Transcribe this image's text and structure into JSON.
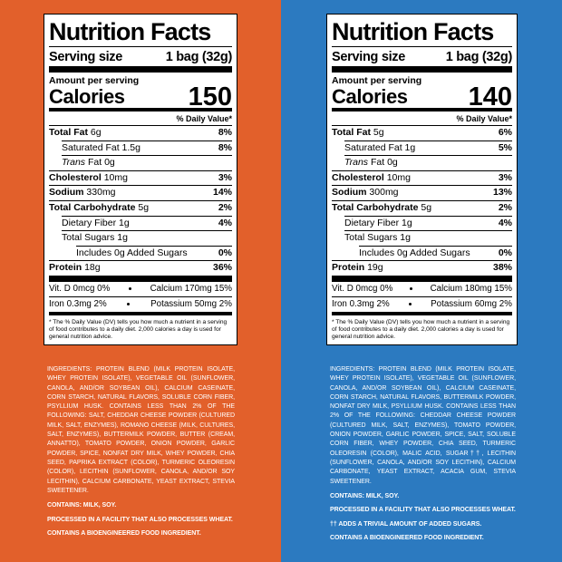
{
  "panels": [
    {
      "title": "Nutrition Facts",
      "serving_label": "Serving size",
      "serving_value": "1 bag (32g)",
      "amount_per_serving": "Amount per serving",
      "calories_label": "Calories",
      "calories": "150",
      "dv_header": "% Daily Value*",
      "rows": [
        {
          "label": "Total Fat",
          "amount": "6g",
          "dv": "8%"
        },
        {
          "label": "Saturated Fat",
          "amount": "1.5g",
          "dv": "8%"
        },
        {
          "label_prefix": "Trans",
          "label": "Fat",
          "amount": "0g"
        },
        {
          "label": "Cholesterol",
          "amount": "10mg",
          "dv": "3%"
        },
        {
          "label": "Sodium",
          "amount": "330mg",
          "dv": "14%"
        },
        {
          "label": "Total Carbohydrate",
          "amount": "5g",
          "dv": "2%"
        },
        {
          "label": "Dietary Fiber",
          "amount": "1g",
          "dv": "4%"
        },
        {
          "label": "Total Sugars",
          "amount": "1g"
        },
        {
          "label": "Includes 0g Added Sugars",
          "dv": "0%"
        },
        {
          "label": "Protein",
          "amount": "18g",
          "dv": "36%"
        }
      ],
      "vitamins": [
        [
          "Vit. D 0mcg 0%",
          "Calcium 170mg 15%"
        ],
        [
          "Iron 0.3mg 2%",
          "Potassium 50mg 2%"
        ]
      ],
      "footnote": "* The % Daily Value (DV) tells you how much a nutrient in a serving of food contributes to a daily diet. 2,000 calories a day is used for general nutrition advice.",
      "ingredients": "INGREDIENTS: PROTEIN BLEND (MILK PROTEIN ISOLATE, WHEY PROTEIN ISOLATE), VEGETABLE OIL (SUNFLOWER, CANOLA, AND/OR SOYBEAN OIL), CALCIUM CASEINATE, CORN STARCH, NATURAL FLAVORS, SOLUBLE CORN FIBER, PSYLLIUM HUSK. CONTAINS LESS THAN 2% OF THE FOLLOWING: SALT, CHEDDAR CHEESE POWDER (CULTURED MILK, SALT, ENZYMES), ROMANO CHEESE (MILK, CULTURES, SALT, ENZYMES), BUTTERMILK POWDER, BUTTER (CREAM, ANNATTO), TOMATO POWDER, ONION POWDER, GARLIC POWDER, SPICE, NONFAT DRY MILK, WHEY POWDER, CHIA SEED, PAPRIKA EXTRACT (COLOR), TURMERIC OLEORESIN (COLOR), LECITHIN (SUNFLOWER, CANOLA, AND/OR SOY LECITHIN), CALCIUM CARBONATE, YEAST EXTRACT, STEVIA SWEETENER.",
      "notes": [
        "CONTAINS: MILK, SOY.",
        "PROCESSED IN A FACILITY THAT ALSO PROCESSES WHEAT.",
        "CONTAINS A BIOENGINEERED FOOD INGREDIENT."
      ]
    },
    {
      "title": "Nutrition Facts",
      "serving_label": "Serving size",
      "serving_value": "1 bag (32g)",
      "amount_per_serving": "Amount per serving",
      "calories_label": "Calories",
      "calories": "140",
      "dv_header": "% Daily Value*",
      "rows": [
        {
          "label": "Total Fat",
          "amount": "5g",
          "dv": "6%"
        },
        {
          "label": "Saturated Fat",
          "amount": "1g",
          "dv": "5%"
        },
        {
          "label_prefix": "Trans",
          "label": "Fat",
          "amount": "0g"
        },
        {
          "label": "Cholesterol",
          "amount": "10mg",
          "dv": "3%"
        },
        {
          "label": "Sodium",
          "amount": "300mg",
          "dv": "13%"
        },
        {
          "label": "Total Carbohydrate",
          "amount": "5g",
          "dv": "2%"
        },
        {
          "label": "Dietary Fiber",
          "amount": "1g",
          "dv": "4%"
        },
        {
          "label": "Total Sugars",
          "amount": "1g"
        },
        {
          "label": "Includes 0g Added Sugars",
          "dv": "0%"
        },
        {
          "label": "Protein",
          "amount": "19g",
          "dv": "38%"
        }
      ],
      "vitamins": [
        [
          "Vit. D 0mcg 0%",
          "Calcium 180mg 15%"
        ],
        [
          "Iron 0.3mg 2%",
          "Potassium 60mg 2%"
        ]
      ],
      "footnote": "* The % Daily Value (DV) tells you how much a nutrient in a serving of food contributes to a daily diet. 2,000 calories a day is used for general nutrition advice.",
      "ingredients": "INGREDIENTS: PROTEIN BLEND (MILK PROTEIN ISOLATE, WHEY PROTEIN ISOLATE), VEGETABLE OIL (SUNFLOWER, CANOLA, AND/OR SOYBEAN OIL), CALCIUM CASEINATE, CORN STARCH, NATURAL FLAVORS, BUTTERMILK POWDER, NONFAT DRY MILK, PSYLLIUM HUSK. CONTAINS LESS THAN 2% OF THE FOLLOWING: CHEDDAR CHEESE POWDER (CULTURED MILK, SALT, ENZYMES), TOMATO POWDER, ONION POWDER, GARLIC POWDER, SPICE, SALT, SOLUBLE CORN FIBER, WHEY POWDER, CHIA SEED, TURMERIC OLEORESIN (COLOR), MALIC ACID, SUGAR††, LECITHIN (SUNFLOWER, CANOLA, AND/OR SOY LECITHIN), CALCIUM CARBONATE, YEAST EXTRACT, ACACIA GUM, STEVIA SWEETENER.",
      "notes": [
        "CONTAINS: MILK, SOY.",
        "PROCESSED IN A FACILITY THAT ALSO PROCESSES WHEAT.",
        "†† ADDS A TRIVIAL AMOUNT OF ADDED SUGARS.",
        "CONTAINS A BIOENGINEERED FOOD INGREDIENT."
      ]
    }
  ]
}
